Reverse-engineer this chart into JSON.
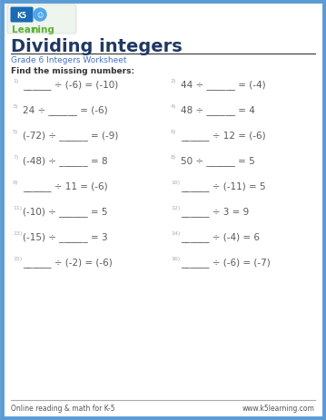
{
  "title": "Dividing integers",
  "subtitle": "Grade 6 Integers Worksheet",
  "instruction": "Find the missing numbers:",
  "footer_left": "Online reading & math for K-5",
  "footer_right": "www.k5learning.com",
  "border_color": "#5b9bd5",
  "title_color": "#1f3864",
  "subtitle_color": "#4472c4",
  "problem_color": "#595959",
  "number_color": "#aaaaaa",
  "problems": [
    {
      "num": "1)",
      "text": "______ ÷ (-6) = (-10)"
    },
    {
      "num": "2)",
      "text": "44 ÷ ______ = (-4)"
    },
    {
      "num": "3)",
      "text": "24 ÷ ______ = (-6)"
    },
    {
      "num": "4)",
      "text": "48 ÷ ______ = 4"
    },
    {
      "num": "5)",
      "text": "(-72) ÷ ______ = (-9)"
    },
    {
      "num": "6)",
      "text": "______ ÷ 12 = (-6)"
    },
    {
      "num": "7)",
      "text": "(-48) ÷ ______ = 8"
    },
    {
      "num": "8)",
      "text": "50 ÷ ______ = 5"
    },
    {
      "num": "9)",
      "text": "______ ÷ 11 = (-6)"
    },
    {
      "num": "10)",
      "text": "______ ÷ (-11) = 5"
    },
    {
      "num": "11)",
      "text": "(-10) ÷ ______ = 5"
    },
    {
      "num": "12)",
      "text": "______ ÷ 3 = 9"
    },
    {
      "num": "13)",
      "text": "(-15) ÷ ______ = 3"
    },
    {
      "num": "14)",
      "text": "______ ÷ (-4) = 6"
    },
    {
      "num": "15)",
      "text": "______ ÷ (-2) = (-6)"
    },
    {
      "num": "16)",
      "text": "______ ÷ (-6) = (-7)"
    }
  ]
}
